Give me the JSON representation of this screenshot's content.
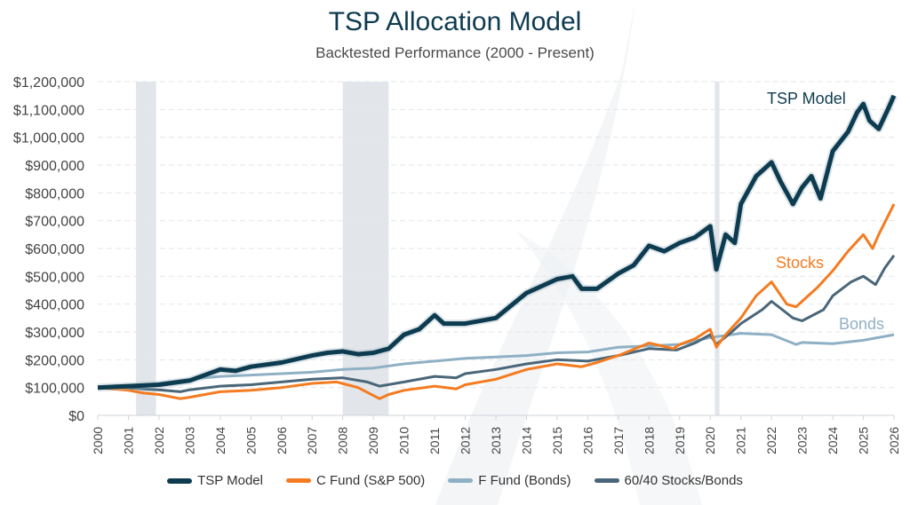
{
  "chart_data": {
    "type": "line",
    "title": "TSP Allocation Model",
    "subtitle": "Backtested Performance (2000 - Present)",
    "xlabel": "",
    "ylabel": "",
    "xlim": [
      2000,
      2026
    ],
    "ylim": [
      0,
      1200000
    ],
    "y_ticks": [
      "$0",
      "$100,000",
      "$200,000",
      "$300,000",
      "$400,000",
      "$500,000",
      "$600,000",
      "$700,000",
      "$800,000",
      "$900,000",
      "$1,000,000",
      "$1,100,000",
      "$1,200,000"
    ],
    "x_ticks": [
      "2000",
      "2001",
      "2002",
      "2003",
      "2004",
      "2005",
      "2006",
      "2007",
      "2008",
      "2009",
      "2010",
      "2011",
      "2012",
      "2013",
      "2014",
      "2015",
      "2016",
      "2017",
      "2018",
      "2019",
      "2020",
      "2021",
      "2022",
      "2023",
      "2024",
      "2025",
      "2026"
    ],
    "grid": "horizontal dashed",
    "legend_position": "bottom",
    "shaded_periods": [
      [
        2001.25,
        2001.9
      ],
      [
        2008.0,
        2009.5
      ],
      [
        2020.15,
        2020.3
      ]
    ],
    "annotations": [
      {
        "text": "TSP Model",
        "series": "TSP Model"
      },
      {
        "text": "Stocks",
        "series": "C Fund (S&P 500)"
      },
      {
        "text": "Bonds",
        "series": "F Fund (Bonds)"
      }
    ],
    "series": [
      {
        "name": "TSP Model",
        "color": "#0d3b4f",
        "x": [
          2000,
          2001,
          2002,
          2003,
          2004,
          2004.5,
          2005,
          2006,
          2007,
          2007.5,
          2008,
          2008.5,
          2009,
          2009.5,
          2010,
          2010.5,
          2011,
          2011.3,
          2012,
          2013,
          2014,
          2015,
          2015.5,
          2015.8,
          2016.3,
          2017,
          2017.5,
          2018,
          2018.5,
          2019,
          2019.5,
          2020,
          2020.2,
          2020.5,
          2020.8,
          2021,
          2021.5,
          2022,
          2022.3,
          2022.7,
          2023,
          2023.3,
          2023.6,
          2024,
          2024.5,
          2024.8,
          2025,
          2025.2,
          2025.5,
          2025.8,
          2026
        ],
        "y": [
          100000,
          105000,
          110000,
          125000,
          165000,
          160000,
          175000,
          190000,
          215000,
          225000,
          230000,
          220000,
          225000,
          240000,
          290000,
          310000,
          360000,
          330000,
          330000,
          350000,
          440000,
          490000,
          500000,
          455000,
          455000,
          510000,
          540000,
          610000,
          590000,
          620000,
          640000,
          680000,
          525000,
          650000,
          620000,
          760000,
          860000,
          910000,
          840000,
          760000,
          820000,
          860000,
          780000,
          950000,
          1020000,
          1090000,
          1120000,
          1060000,
          1030000,
          1100000,
          1150000
        ]
      },
      {
        "name": "C Fund (S&P 500)",
        "color": "#f47b20",
        "x": [
          2000,
          2000.5,
          2001,
          2001.5,
          2002,
          2002.7,
          2003,
          2004,
          2005,
          2006,
          2007,
          2007.8,
          2008.5,
          2009.2,
          2009.5,
          2010,
          2011,
          2011.7,
          2012,
          2013,
          2014,
          2015,
          2015.8,
          2016.3,
          2017,
          2018,
          2018.8,
          2019,
          2019.5,
          2020,
          2020.2,
          2020.5,
          2021,
          2021.5,
          2022,
          2022.5,
          2022.8,
          2023,
          2023.5,
          2024,
          2024.5,
          2025,
          2025.3,
          2025.5,
          2026
        ],
        "y": [
          100000,
          95000,
          90000,
          80000,
          75000,
          60000,
          65000,
          85000,
          90000,
          100000,
          115000,
          120000,
          100000,
          60000,
          75000,
          90000,
          105000,
          95000,
          110000,
          130000,
          165000,
          185000,
          175000,
          190000,
          215000,
          260000,
          240000,
          255000,
          275000,
          310000,
          245000,
          290000,
          350000,
          430000,
          480000,
          400000,
          390000,
          410000,
          460000,
          520000,
          590000,
          650000,
          600000,
          650000,
          760000
        ]
      },
      {
        "name": "F Fund (Bonds)",
        "color": "#8fb0c4",
        "x": [
          2000,
          2001,
          2002,
          2003,
          2004,
          2005,
          2006,
          2007,
          2008,
          2009,
          2010,
          2011,
          2012,
          2013,
          2014,
          2015,
          2016,
          2017,
          2018,
          2019,
          2020,
          2021,
          2022,
          2022.8,
          2023,
          2024,
          2025,
          2026
        ],
        "y": [
          100000,
          105000,
          115000,
          130000,
          140000,
          145000,
          150000,
          155000,
          165000,
          170000,
          185000,
          195000,
          205000,
          210000,
          215000,
          225000,
          228000,
          245000,
          250000,
          255000,
          280000,
          295000,
          290000,
          255000,
          262000,
          258000,
          270000,
          290000
        ]
      },
      {
        "name": "60/40 Stocks/Bonds",
        "color": "#4a6679",
        "x": [
          2000,
          2001,
          2002,
          2002.7,
          2003,
          2004,
          2005,
          2006,
          2007,
          2008,
          2008.8,
          2009.2,
          2010,
          2011,
          2011.7,
          2012,
          2013,
          2014,
          2015,
          2016,
          2017,
          2018,
          2018.9,
          2019.5,
          2020,
          2020.2,
          2020.7,
          2021,
          2021.7,
          2022,
          2022.7,
          2023,
          2023.7,
          2024,
          2024.6,
          2025,
          2025.4,
          2025.7,
          2026
        ],
        "y": [
          100000,
          98000,
          92000,
          85000,
          92000,
          105000,
          110000,
          120000,
          130000,
          135000,
          120000,
          105000,
          120000,
          140000,
          135000,
          150000,
          165000,
          185000,
          200000,
          195000,
          215000,
          240000,
          235000,
          260000,
          290000,
          255000,
          300000,
          330000,
          380000,
          410000,
          350000,
          340000,
          380000,
          430000,
          480000,
          500000,
          470000,
          530000,
          575000
        ]
      }
    ]
  }
}
